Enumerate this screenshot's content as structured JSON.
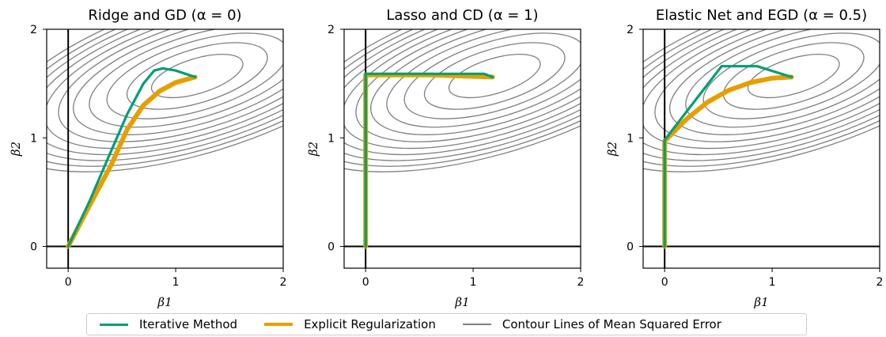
{
  "colors": {
    "iterative": "#009E73",
    "explicit": "#E69F00",
    "contour": "#7f7f7f",
    "axes_zero": "#000000"
  },
  "legend": {
    "placement": "bottom-center",
    "items": [
      {
        "key": "iterative",
        "label": "Iterative Method"
      },
      {
        "key": "explicit",
        "label": "Explicit Regularization"
      },
      {
        "key": "contour",
        "label": "Contour Lines of Mean Squared Error"
      }
    ]
  },
  "chart_data": [
    {
      "type": "line",
      "title": "Ridge and GD (α = 0)",
      "xlabel": "β1",
      "ylabel": "β2",
      "xlim": [
        -0.2,
        2
      ],
      "ylim": [
        -0.2,
        2
      ],
      "xticks": [
        "0",
        "1",
        "2"
      ],
      "yticks": [
        "0",
        "1",
        "2"
      ],
      "contours": {
        "center": [
          1.2,
          1.57
        ],
        "levels": 11
      },
      "series": [
        {
          "key": "explicit",
          "points": [
            [
              0,
              0
            ],
            [
              0.2,
              0.38
            ],
            [
              0.4,
              0.75
            ],
            [
              0.55,
              1.08
            ],
            [
              0.7,
              1.3
            ],
            [
              0.85,
              1.43
            ],
            [
              1.0,
              1.51
            ],
            [
              1.18,
              1.56
            ]
          ]
        },
        {
          "key": "iterative",
          "points": [
            [
              0,
              0
            ],
            [
              0.2,
              0.42
            ],
            [
              0.4,
              0.88
            ],
            [
              0.55,
              1.22
            ],
            [
              0.7,
              1.5
            ],
            [
              0.8,
              1.62
            ],
            [
              0.88,
              1.64
            ],
            [
              1.0,
              1.62
            ],
            [
              1.18,
              1.56
            ]
          ]
        }
      ]
    },
    {
      "type": "line",
      "title": "Lasso and CD (α = 1)",
      "xlabel": "β1",
      "ylabel": "β2",
      "xlim": [
        -0.2,
        2
      ],
      "ylim": [
        -0.2,
        2
      ],
      "xticks": [
        "0",
        "1",
        "2"
      ],
      "yticks": [
        "0",
        "1",
        "2"
      ],
      "contours": {
        "center": [
          1.2,
          1.57
        ],
        "levels": 11
      },
      "series": [
        {
          "key": "explicit",
          "points": [
            [
              0,
              0
            ],
            [
              0,
              1.58
            ],
            [
              0.6,
              1.58
            ],
            [
              1.18,
              1.56
            ]
          ]
        },
        {
          "key": "iterative",
          "points": [
            [
              0,
              0
            ],
            [
              0,
              1.59
            ],
            [
              1.1,
              1.59
            ],
            [
              1.18,
              1.56
            ]
          ]
        }
      ]
    },
    {
      "type": "line",
      "title": "Elastic Net and EGD (α = 0.5)",
      "xlabel": "β1",
      "ylabel": "β2",
      "xlim": [
        -0.2,
        2
      ],
      "ylim": [
        -0.2,
        2
      ],
      "xticks": [
        "0",
        "1",
        "2"
      ],
      "yticks": [
        "0",
        "1",
        "2"
      ],
      "contours": {
        "center": [
          1.2,
          1.57
        ],
        "levels": 11
      },
      "series": [
        {
          "key": "explicit",
          "points": [
            [
              0,
              0
            ],
            [
              0,
              0.97
            ],
            [
              0.2,
              1.17
            ],
            [
              0.4,
              1.33
            ],
            [
              0.6,
              1.44
            ],
            [
              0.8,
              1.51
            ],
            [
              1.0,
              1.55
            ],
            [
              1.18,
              1.56
            ]
          ]
        },
        {
          "key": "iterative",
          "points": [
            [
              0,
              0
            ],
            [
              0,
              0.98
            ],
            [
              0.53,
              1.66
            ],
            [
              0.86,
              1.66
            ],
            [
              1.18,
              1.56
            ]
          ]
        }
      ]
    }
  ]
}
